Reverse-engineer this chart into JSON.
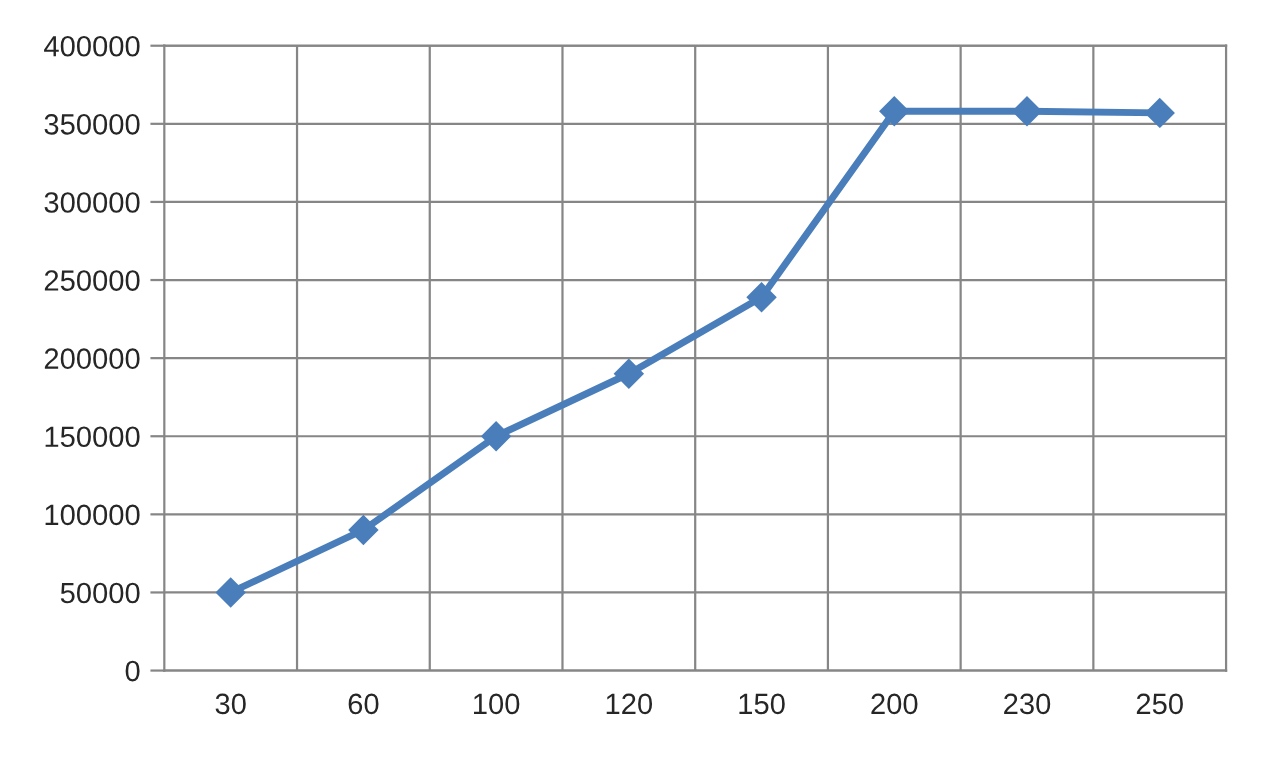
{
  "chart_data": {
    "type": "line",
    "categories": [
      "30",
      "60",
      "100",
      "120",
      "150",
      "200",
      "230",
      "250"
    ],
    "series": [
      {
        "color": "#4a7ebb",
        "values": [
          50000,
          90000,
          150000,
          190000,
          239000,
          358000,
          358000,
          357000
        ]
      }
    ],
    "ylim": [
      0,
      400000
    ],
    "yticks": [
      0,
      50000,
      100000,
      150000,
      200000,
      250000,
      300000,
      350000,
      400000
    ],
    "grid": true,
    "marker": "diamond",
    "line_style": "solid"
  }
}
